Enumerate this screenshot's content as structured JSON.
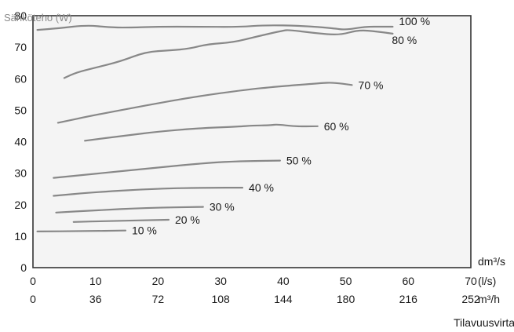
{
  "chart_data": {
    "type": "line",
    "ylabel": "Sähköteho (W)",
    "xlabel": "Tilavuusvirta",
    "ylim": [
      0,
      80
    ],
    "xlim": [
      0,
      70
    ],
    "yticks": [
      "0",
      "10",
      "20",
      "30",
      "40",
      "50",
      "60",
      "70",
      "80"
    ],
    "xticks_dm3s": [
      "0",
      "10",
      "20",
      "30",
      "40",
      "50",
      "60",
      "70"
    ],
    "xticks_m3h": [
      "0",
      "36",
      "72",
      "108",
      "144",
      "180",
      "216",
      "252"
    ],
    "x_units": {
      "dm3s": "dm³/s",
      "ls": "(l/s)",
      "m3h": "m³/h"
    },
    "grid": false,
    "colors": {
      "curve": "#888888",
      "plot_bg": "#f4f4f4",
      "axis": "#333333"
    },
    "series": [
      {
        "name": "100 %",
        "x": [
          0.7,
          4,
          8.7,
          12,
          15,
          20,
          26,
          33,
          37,
          43,
          48,
          50,
          53,
          56,
          57.5
        ],
        "y": [
          75.5,
          76,
          77,
          76.3,
          76.2,
          76.5,
          76.5,
          76.4,
          77,
          76.8,
          76,
          75.5,
          76.5,
          76.5,
          76.5
        ]
      },
      {
        "name": "80 %",
        "x": [
          5,
          7,
          10,
          14,
          18,
          22,
          25,
          28,
          32,
          36,
          40,
          41,
          45,
          49,
          52,
          55,
          57.5
        ],
        "y": [
          60.2,
          62,
          63.5,
          65.5,
          68.5,
          69,
          69.5,
          71,
          71.5,
          73.5,
          75.3,
          75.5,
          74.5,
          73.8,
          75.5,
          75,
          74.3
        ]
      },
      {
        "name": "70 %",
        "x": [
          4,
          10,
          18,
          26,
          34,
          39,
          46,
          48,
          51
        ],
        "y": [
          46,
          48.5,
          51.5,
          54.3,
          56.5,
          57.5,
          58.6,
          58.8,
          58
        ]
      },
      {
        "name": "60 %",
        "x": [
          8.3,
          15,
          20,
          26,
          33,
          35,
          38,
          39,
          42,
          45.5
        ],
        "y": [
          40.3,
          42,
          43.2,
          44.2,
          44.8,
          45.1,
          45.2,
          45.5,
          44.8,
          44.9
        ]
      },
      {
        "name": "50 %",
        "x": [
          3.3,
          10,
          20,
          28,
          33,
          39.5
        ],
        "y": [
          28.5,
          29.8,
          31.8,
          33.3,
          33.8,
          34
        ]
      },
      {
        "name": "40 %",
        "x": [
          3.3,
          10,
          20,
          28,
          33.5
        ],
        "y": [
          22.8,
          24,
          25.1,
          25.4,
          25.4
        ]
      },
      {
        "name": "30 %",
        "x": [
          3.7,
          10,
          18,
          27.2
        ],
        "y": [
          17.5,
          18.2,
          19,
          19.3
        ]
      },
      {
        "name": "20 %",
        "x": [
          6.5,
          12,
          21.7
        ],
        "y": [
          14.5,
          14.8,
          15.2
        ]
      },
      {
        "name": "10 %",
        "x": [
          0.7,
          8,
          14.8
        ],
        "y": [
          11.5,
          11.6,
          11.8
        ]
      }
    ]
  }
}
